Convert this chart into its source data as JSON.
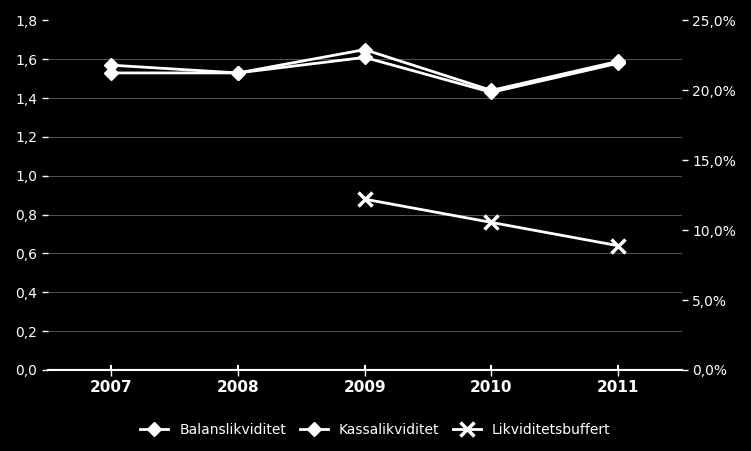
{
  "years": [
    2007,
    2008,
    2009,
    2010,
    2011
  ],
  "balanslikviditet": [
    1.57,
    1.53,
    1.65,
    1.44,
    1.59
  ],
  "kassalikviditet": [
    1.53,
    1.53,
    1.61,
    1.43,
    1.58
  ],
  "likviditetsbuffert": [
    null,
    null,
    0.88,
    0.76,
    0.64
  ],
  "y_left_ticks": [
    0.0,
    0.2,
    0.4,
    0.6,
    0.8,
    1.0,
    1.2,
    1.4,
    1.6,
    1.8
  ],
  "y_left_labels": [
    "0,0",
    "0,2",
    "0,4",
    "0,6",
    "0,8",
    "1,0",
    "1,2",
    "1,4",
    "1,6",
    "1,8"
  ],
  "y_right_ticks": [
    0.0,
    0.36,
    0.72,
    1.08,
    1.44,
    1.8
  ],
  "y_right_labels": [
    "0,0%",
    "5,0%",
    "10,0%",
    "15,0%",
    "20,0%",
    "25,0%"
  ],
  "line_color": "#ffffff",
  "bg_color": "#000000",
  "text_color": "#ffffff",
  "grid_color": "#555555",
  "legend_labels": [
    "Balanslikviditet",
    "Kassalikviditet",
    "Likviditetsbuffert"
  ],
  "marker_balans": "D",
  "marker_kassa": "D",
  "marker_buffert": "x",
  "ylim": [
    0.0,
    1.8
  ],
  "xlim_left": 2006.5,
  "xlim_right": 2011.5
}
